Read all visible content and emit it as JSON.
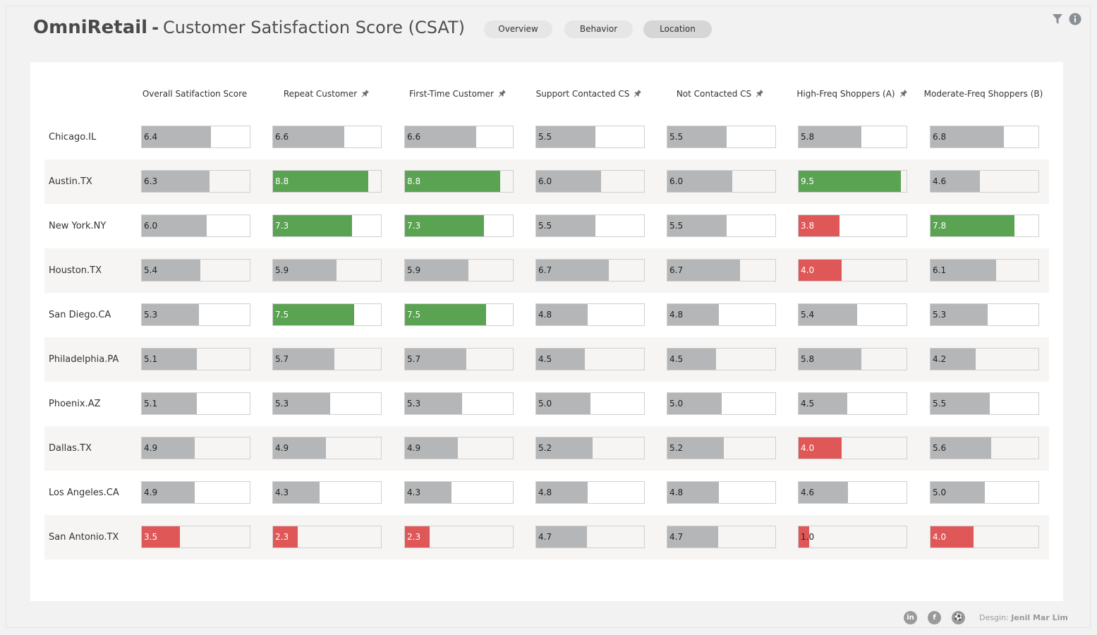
{
  "header": {
    "brand": "OmniRetail",
    "separator": "-",
    "subtitle": "Customer Satisfaction Score (CSAT)"
  },
  "tabs": [
    {
      "label": "Overview",
      "active": false
    },
    {
      "label": "Behavior",
      "active": false
    },
    {
      "label": "Location",
      "active": true
    }
  ],
  "top_icons": [
    "filter-icon",
    "info-icon"
  ],
  "columns": [
    {
      "label": "Overall Satifaction Score",
      "pinned": false
    },
    {
      "label": "Repeat Customer",
      "pinned": true
    },
    {
      "label": "First-Time Customer",
      "pinned": true
    },
    {
      "label": "Support Contacted CS",
      "pinned": true
    },
    {
      "label": "Not Contacted CS",
      "pinned": true
    },
    {
      "label": "High-Freq Shoppers (A)",
      "pinned": true
    },
    {
      "label": "Moderate-Freq Shoppers (B)",
      "pinned": false
    }
  ],
  "scale_max": 10,
  "colors": {
    "neutral": "#b4b6b8",
    "high": "#5aa352",
    "low": "#e05758",
    "box_border": "#cfcfcf",
    "row_shade": "#f6f5f4"
  },
  "rows": [
    {
      "location": "Chicago.IL",
      "cells": [
        {
          "value": "6.4",
          "level": "neutral"
        },
        {
          "value": "6.6",
          "level": "neutral"
        },
        {
          "value": "6.6",
          "level": "neutral"
        },
        {
          "value": "5.5",
          "level": "neutral"
        },
        {
          "value": "5.5",
          "level": "neutral"
        },
        {
          "value": "5.8",
          "level": "neutral"
        },
        {
          "value": "6.8",
          "level": "neutral"
        }
      ]
    },
    {
      "location": "Austin.TX",
      "cells": [
        {
          "value": "6.3",
          "level": "neutral"
        },
        {
          "value": "8.8",
          "level": "high"
        },
        {
          "value": "8.8",
          "level": "high"
        },
        {
          "value": "6.0",
          "level": "neutral"
        },
        {
          "value": "6.0",
          "level": "neutral"
        },
        {
          "value": "9.5",
          "level": "high"
        },
        {
          "value": "4.6",
          "level": "neutral"
        }
      ]
    },
    {
      "location": "New York.NY",
      "cells": [
        {
          "value": "6.0",
          "level": "neutral"
        },
        {
          "value": "7.3",
          "level": "high"
        },
        {
          "value": "7.3",
          "level": "high"
        },
        {
          "value": "5.5",
          "level": "neutral"
        },
        {
          "value": "5.5",
          "level": "neutral"
        },
        {
          "value": "3.8",
          "level": "low"
        },
        {
          "value": "7.8",
          "level": "high"
        }
      ]
    },
    {
      "location": "Houston.TX",
      "cells": [
        {
          "value": "5.4",
          "level": "neutral"
        },
        {
          "value": "5.9",
          "level": "neutral"
        },
        {
          "value": "5.9",
          "level": "neutral"
        },
        {
          "value": "6.7",
          "level": "neutral"
        },
        {
          "value": "6.7",
          "level": "neutral"
        },
        {
          "value": "4.0",
          "level": "low"
        },
        {
          "value": "6.1",
          "level": "neutral"
        }
      ]
    },
    {
      "location": "San Diego.CA",
      "cells": [
        {
          "value": "5.3",
          "level": "neutral"
        },
        {
          "value": "7.5",
          "level": "high"
        },
        {
          "value": "7.5",
          "level": "high"
        },
        {
          "value": "4.8",
          "level": "neutral"
        },
        {
          "value": "4.8",
          "level": "neutral"
        },
        {
          "value": "5.4",
          "level": "neutral"
        },
        {
          "value": "5.3",
          "level": "neutral"
        }
      ]
    },
    {
      "location": "Philadelphia.PA",
      "cells": [
        {
          "value": "5.1",
          "level": "neutral"
        },
        {
          "value": "5.7",
          "level": "neutral"
        },
        {
          "value": "5.7",
          "level": "neutral"
        },
        {
          "value": "4.5",
          "level": "neutral"
        },
        {
          "value": "4.5",
          "level": "neutral"
        },
        {
          "value": "5.8",
          "level": "neutral"
        },
        {
          "value": "4.2",
          "level": "neutral"
        }
      ]
    },
    {
      "location": "Phoenix.AZ",
      "cells": [
        {
          "value": "5.1",
          "level": "neutral"
        },
        {
          "value": "5.3",
          "level": "neutral"
        },
        {
          "value": "5.3",
          "level": "neutral"
        },
        {
          "value": "5.0",
          "level": "neutral"
        },
        {
          "value": "5.0",
          "level": "neutral"
        },
        {
          "value": "4.5",
          "level": "neutral"
        },
        {
          "value": "5.5",
          "level": "neutral"
        }
      ]
    },
    {
      "location": "Dallas.TX",
      "cells": [
        {
          "value": "4.9",
          "level": "neutral"
        },
        {
          "value": "4.9",
          "level": "neutral"
        },
        {
          "value": "4.9",
          "level": "neutral"
        },
        {
          "value": "5.2",
          "level": "neutral"
        },
        {
          "value": "5.2",
          "level": "neutral"
        },
        {
          "value": "4.0",
          "level": "low"
        },
        {
          "value": "5.6",
          "level": "neutral"
        }
      ]
    },
    {
      "location": "Los Angeles.CA",
      "cells": [
        {
          "value": "4.9",
          "level": "neutral"
        },
        {
          "value": "4.3",
          "level": "neutral"
        },
        {
          "value": "4.3",
          "level": "neutral"
        },
        {
          "value": "4.8",
          "level": "neutral"
        },
        {
          "value": "4.8",
          "level": "neutral"
        },
        {
          "value": "4.6",
          "level": "neutral"
        },
        {
          "value": "5.0",
          "level": "neutral"
        }
      ]
    },
    {
      "location": "San Antonio.TX",
      "cells": [
        {
          "value": "3.5",
          "level": "low"
        },
        {
          "value": "2.3",
          "level": "low"
        },
        {
          "value": "2.3",
          "level": "low"
        },
        {
          "value": "4.7",
          "level": "neutral"
        },
        {
          "value": "4.7",
          "level": "neutral"
        },
        {
          "value": "1.0",
          "level": "low"
        },
        {
          "value": "4.0",
          "level": "low"
        }
      ]
    }
  ],
  "footer": {
    "icons": [
      {
        "name": "linkedin-icon",
        "glyph": "in"
      },
      {
        "name": "facebook-icon",
        "glyph": "f"
      },
      {
        "name": "dribbble-icon",
        "glyph": "⚽"
      }
    ],
    "credit_prefix": "Desgin:",
    "credit_name": "Jenil Mar Lim"
  }
}
